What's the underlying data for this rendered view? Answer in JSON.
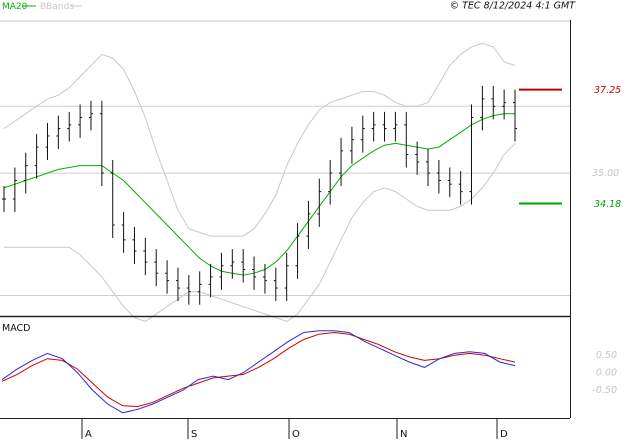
{
  "header": {
    "legend": [
      {
        "label": "MA20",
        "color": "#00b000"
      },
      {
        "label": "BBands",
        "color": "#c8c8c8"
      }
    ],
    "copyright": "© TEC 8/12/2024 4:1 GMT"
  },
  "chart_data": [
    {
      "type": "line",
      "title": "",
      "note": "price panel with OHLC bars, MA20 and Bollinger Bands",
      "xlabel": "",
      "ylabel": "",
      "x_ticks": [
        "A",
        "S",
        "O",
        "N",
        "D"
      ],
      "y_ticks": [
        "35.00"
      ],
      "ylim": [
        31.2,
        39.1
      ],
      "grid": true,
      "levels": [
        {
          "label": "37.25",
          "value": 37.25,
          "color": "#c00000"
        },
        {
          "label": "34.18",
          "value": 34.18,
          "color": "#00a000"
        }
      ],
      "series": [
        {
          "name": "MA20",
          "color": "#00b000",
          "values": [
            34.6,
            34.7,
            34.8,
            34.9,
            35.0,
            35.1,
            35.15,
            35.2,
            35.2,
            35.2,
            35.0,
            34.8,
            34.5,
            34.2,
            33.9,
            33.6,
            33.3,
            33.0,
            32.7,
            32.5,
            32.35,
            32.3,
            32.25,
            32.3,
            32.4,
            32.6,
            32.9,
            33.3,
            33.7,
            34.1,
            34.5,
            34.9,
            35.2,
            35.4,
            35.6,
            35.75,
            35.8,
            35.75,
            35.7,
            35.65,
            35.7,
            35.9,
            36.1,
            36.3,
            36.45,
            36.55,
            36.6,
            36.6
          ]
        },
        {
          "name": "BBand upper",
          "color": "#c8c8c8",
          "values": [
            36.2,
            36.4,
            36.6,
            36.8,
            37.0,
            37.1,
            37.3,
            37.6,
            37.9,
            38.2,
            38.1,
            37.8,
            37.2,
            36.5,
            35.6,
            34.8,
            34.0,
            33.5,
            33.4,
            33.3,
            33.3,
            33.3,
            33.3,
            33.5,
            33.9,
            34.4,
            35.2,
            35.8,
            36.3,
            36.7,
            36.9,
            37.0,
            37.1,
            37.2,
            37.2,
            37.1,
            36.9,
            36.8,
            36.8,
            36.9,
            37.4,
            37.9,
            38.2,
            38.4,
            38.5,
            38.4,
            38.0,
            37.9
          ]
        },
        {
          "name": "BBand lower",
          "color": "#c8c8c8",
          "values": [
            33.0,
            33.0,
            33.0,
            33.0,
            33.0,
            33.0,
            33.0,
            32.8,
            32.5,
            32.2,
            31.8,
            31.4,
            31.1,
            31.0,
            31.2,
            31.4,
            31.6,
            31.8,
            31.8,
            31.7,
            31.6,
            31.5,
            31.4,
            31.3,
            31.2,
            31.1,
            31.0,
            31.2,
            31.6,
            32.0,
            32.6,
            33.2,
            33.8,
            34.2,
            34.5,
            34.6,
            34.5,
            34.3,
            34.1,
            34.0,
            34.0,
            34.0,
            34.1,
            34.3,
            34.6,
            35.0,
            35.5,
            35.8
          ]
        },
        {
          "name": "Close",
          "color": "#111111",
          "values": [
            34.3,
            34.8,
            35.2,
            35.7,
            36.0,
            36.2,
            36.3,
            36.5,
            36.6,
            35.0,
            33.6,
            33.2,
            32.9,
            32.6,
            32.3,
            32.1,
            31.9,
            31.8,
            32.0,
            32.2,
            32.5,
            32.6,
            32.4,
            32.2,
            32.1,
            31.9,
            32.5,
            33.3,
            33.9,
            34.5,
            35.0,
            35.6,
            35.9,
            36.2,
            36.3,
            36.2,
            36.3,
            35.5,
            35.3,
            35.0,
            34.8,
            34.7,
            34.5,
            36.5,
            37.0,
            36.8,
            36.9,
            36.2
          ]
        }
      ]
    },
    {
      "type": "line",
      "title": "MACD",
      "xlabel": "",
      "ylabel": "",
      "y_ticks": [
        "0.50",
        "0.00",
        "-0.50"
      ],
      "ylim": [
        -1.3,
        1.45
      ],
      "series": [
        {
          "name": "MACD",
          "color": "#2a2ad0",
          "values": [
            -0.2,
            0.1,
            0.35,
            0.55,
            0.4,
            0.0,
            -0.5,
            -0.9,
            -1.15,
            -1.05,
            -0.9,
            -0.7,
            -0.5,
            -0.2,
            -0.1,
            -0.2,
            0.0,
            0.3,
            0.6,
            0.9,
            1.15,
            1.2,
            1.2,
            1.15,
            0.9,
            0.7,
            0.5,
            0.3,
            0.15,
            0.4,
            0.55,
            0.6,
            0.55,
            0.3,
            0.2
          ]
        },
        {
          "name": "Signal",
          "color": "#d00000",
          "values": [
            -0.25,
            -0.05,
            0.2,
            0.4,
            0.35,
            0.1,
            -0.3,
            -0.7,
            -0.95,
            -0.97,
            -0.85,
            -0.65,
            -0.45,
            -0.3,
            -0.15,
            -0.1,
            -0.05,
            0.15,
            0.4,
            0.7,
            0.95,
            1.1,
            1.15,
            1.1,
            0.95,
            0.8,
            0.6,
            0.45,
            0.35,
            0.4,
            0.5,
            0.55,
            0.5,
            0.4,
            0.3
          ]
        }
      ]
    }
  ]
}
